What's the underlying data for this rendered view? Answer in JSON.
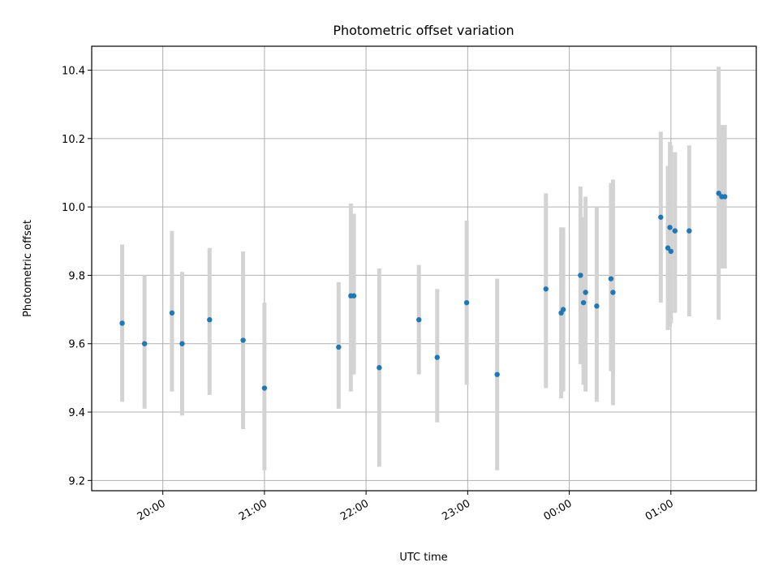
{
  "chart_data": {
    "type": "scatter",
    "title": "Photometric offset variation",
    "xlabel": "UTC time",
    "ylabel": "Photometric offset",
    "grid": true,
    "x_units": "hours (UTC, continuous past midnight)",
    "xlim": [
      19.3,
      25.84
    ],
    "ylim": [
      9.17,
      10.47
    ],
    "x_ticks": [
      {
        "value": 20,
        "label": "20:00"
      },
      {
        "value": 21,
        "label": "21:00"
      },
      {
        "value": 22,
        "label": "22:00"
      },
      {
        "value": 23,
        "label": "23:00"
      },
      {
        "value": 24,
        "label": "00:00"
      },
      {
        "value": 25,
        "label": "01:00"
      }
    ],
    "y_ticks": [
      {
        "value": 9.2,
        "label": "9.2"
      },
      {
        "value": 9.4,
        "label": "9.4"
      },
      {
        "value": 9.6,
        "label": "9.6"
      },
      {
        "value": 9.8,
        "label": "9.8"
      },
      {
        "value": 10.0,
        "label": "10.0"
      },
      {
        "value": 10.2,
        "label": "10.2"
      },
      {
        "value": 10.4,
        "label": "10.4"
      }
    ],
    "point_color": "#1f77b4",
    "errorbar_color": "#d3d3d3",
    "points": [
      {
        "x": 19.6,
        "y": 9.66,
        "low": 9.43,
        "high": 9.89
      },
      {
        "x": 19.82,
        "y": 9.6,
        "low": 9.41,
        "high": 9.8
      },
      {
        "x": 20.09,
        "y": 9.69,
        "low": 9.46,
        "high": 9.93
      },
      {
        "x": 20.19,
        "y": 9.6,
        "low": 9.39,
        "high": 9.81
      },
      {
        "x": 20.46,
        "y": 9.67,
        "low": 9.45,
        "high": 9.88
      },
      {
        "x": 20.79,
        "y": 9.61,
        "low": 9.35,
        "high": 9.87
      },
      {
        "x": 21.0,
        "y": 9.47,
        "low": 9.23,
        "high": 9.72
      },
      {
        "x": 21.73,
        "y": 9.59,
        "low": 9.41,
        "high": 9.78
      },
      {
        "x": 21.85,
        "y": 9.74,
        "low": 9.46,
        "high": 10.01
      },
      {
        "x": 21.88,
        "y": 9.74,
        "low": 9.51,
        "high": 9.98
      },
      {
        "x": 22.13,
        "y": 9.53,
        "low": 9.24,
        "high": 9.82
      },
      {
        "x": 22.52,
        "y": 9.67,
        "low": 9.51,
        "high": 9.83
      },
      {
        "x": 22.7,
        "y": 9.56,
        "low": 9.37,
        "high": 9.76
      },
      {
        "x": 22.99,
        "y": 9.72,
        "low": 9.48,
        "high": 9.96
      },
      {
        "x": 23.29,
        "y": 9.51,
        "low": 9.23,
        "high": 9.79
      },
      {
        "x": 23.77,
        "y": 9.76,
        "low": 9.47,
        "high": 10.04
      },
      {
        "x": 23.92,
        "y": 9.69,
        "low": 9.44,
        "high": 9.94
      },
      {
        "x": 23.94,
        "y": 9.7,
        "low": 9.46,
        "high": 9.94
      },
      {
        "x": 24.11,
        "y": 9.8,
        "low": 9.54,
        "high": 10.06
      },
      {
        "x": 24.14,
        "y": 9.72,
        "low": 9.48,
        "high": 9.97
      },
      {
        "x": 24.16,
        "y": 9.75,
        "low": 9.46,
        "high": 10.03
      },
      {
        "x": 24.27,
        "y": 9.71,
        "low": 9.43,
        "high": 10.0
      },
      {
        "x": 24.41,
        "y": 9.79,
        "low": 9.52,
        "high": 10.07
      },
      {
        "x": 24.43,
        "y": 9.75,
        "low": 9.42,
        "high": 10.08
      },
      {
        "x": 24.9,
        "y": 9.97,
        "low": 9.72,
        "high": 10.22
      },
      {
        "x": 24.97,
        "y": 9.88,
        "low": 9.64,
        "high": 10.12
      },
      {
        "x": 24.99,
        "y": 9.94,
        "low": 9.65,
        "high": 10.19
      },
      {
        "x": 25.0,
        "y": 9.87,
        "low": 9.66,
        "high": 10.18
      },
      {
        "x": 25.04,
        "y": 9.93,
        "low": 9.69,
        "high": 10.16
      },
      {
        "x": 25.18,
        "y": 9.93,
        "low": 9.68,
        "high": 10.18
      },
      {
        "x": 25.47,
        "y": 10.04,
        "low": 9.67,
        "high": 10.41
      },
      {
        "x": 25.5,
        "y": 10.03,
        "low": 9.82,
        "high": 10.24
      },
      {
        "x": 25.53,
        "y": 10.03,
        "low": 9.82,
        "high": 10.24
      }
    ]
  }
}
